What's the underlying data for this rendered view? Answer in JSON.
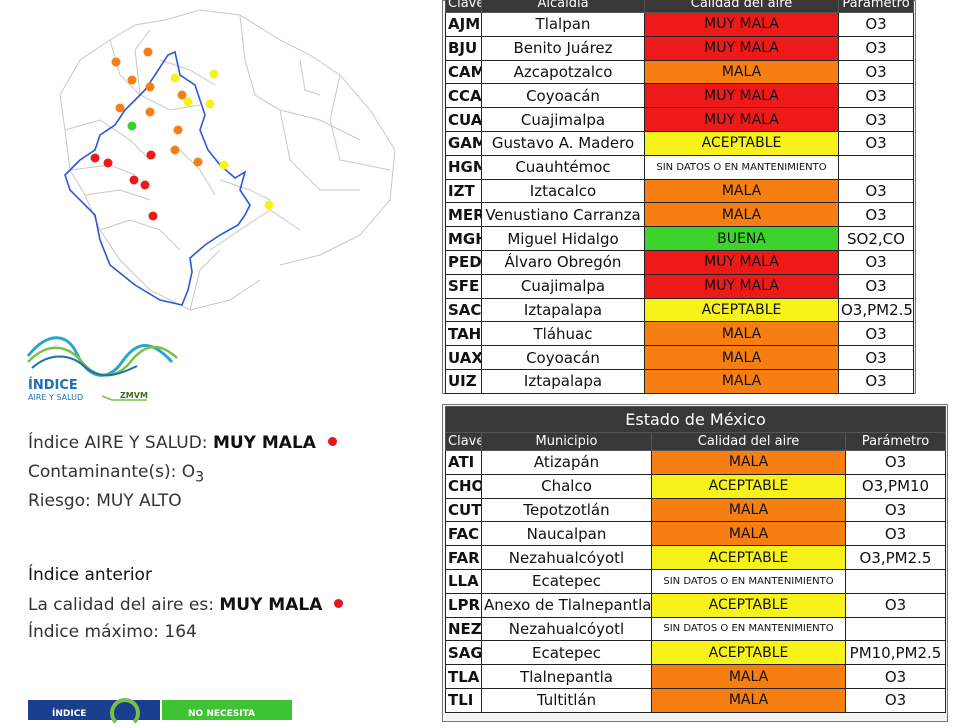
{
  "colors": {
    "muy_mala": "#ee1a1a",
    "mala": "#f77f12",
    "aceptable": "#f7f21a",
    "buena": "#3ed32c",
    "sin_datos": "#ffffff",
    "header": "#383838",
    "marker_red": "#e8141a"
  },
  "cdmx_table": {
    "headers": [
      "Clave",
      "Alcaldía",
      "Calidad del aire",
      "Parámetro"
    ],
    "rows": [
      {
        "clave": "AJM",
        "alcaldia": "Tlalpan",
        "calidad": "MUY MALA",
        "level": "muy_mala",
        "parametro": "O3"
      },
      {
        "clave": "BJU",
        "alcaldia": "Benito Juárez",
        "calidad": "MUY MALA",
        "level": "muy_mala",
        "parametro": "O3"
      },
      {
        "clave": "CAM",
        "alcaldia": "Azcapotzalco",
        "calidad": "MALA",
        "level": "mala",
        "parametro": "O3"
      },
      {
        "clave": "CCA",
        "alcaldia": "Coyoacán",
        "calidad": "MUY MALA",
        "level": "muy_mala",
        "parametro": "O3"
      },
      {
        "clave": "CUA",
        "alcaldia": "Cuajimalpa",
        "calidad": "MUY MALA",
        "level": "muy_mala",
        "parametro": "O3"
      },
      {
        "clave": "GAM",
        "alcaldia": "Gustavo A. Madero",
        "calidad": "ACEPTABLE",
        "level": "aceptable",
        "parametro": "O3"
      },
      {
        "clave": "HGM",
        "alcaldia": "Cuauhtémoc",
        "calidad": "SIN DATOS O EN MANTENIMIENTO",
        "level": "sin_datos",
        "parametro": ""
      },
      {
        "clave": "IZT",
        "alcaldia": "Iztacalco",
        "calidad": "MALA",
        "level": "mala",
        "parametro": "O3"
      },
      {
        "clave": "MER",
        "alcaldia": "Venustiano Carranza",
        "calidad": "MALA",
        "level": "mala",
        "parametro": "O3"
      },
      {
        "clave": "MGH",
        "alcaldia": "Miguel Hidalgo",
        "calidad": "BUENA",
        "level": "buena",
        "parametro": "SO2,CO"
      },
      {
        "clave": "PED",
        "alcaldia": "Álvaro Obregón",
        "calidad": "MUY MALA",
        "level": "muy_mala",
        "parametro": "O3"
      },
      {
        "clave": "SFE",
        "alcaldia": "Cuajimalpa",
        "calidad": "MUY MALA",
        "level": "muy_mala",
        "parametro": "O3"
      },
      {
        "clave": "SAC",
        "alcaldia": "Iztapalapa",
        "calidad": "ACEPTABLE",
        "level": "aceptable",
        "parametro": "O3,PM2.5"
      },
      {
        "clave": "TAH",
        "alcaldia": "Tláhuac",
        "calidad": "MALA",
        "level": "mala",
        "parametro": "O3"
      },
      {
        "clave": "UAX",
        "alcaldia": "Coyoacán",
        "calidad": "MALA",
        "level": "mala",
        "parametro": "O3"
      },
      {
        "clave": "UIZ",
        "alcaldia": "Iztapalapa",
        "calidad": "MALA",
        "level": "mala",
        "parametro": "O3"
      }
    ]
  },
  "edomex_table": {
    "title": "Estado de México",
    "headers": [
      "Clave",
      "Municipio",
      "Calidad del aire",
      "Parámetro"
    ],
    "rows": [
      {
        "clave": "ATI",
        "alcaldia": "Atizapán",
        "calidad": "MALA",
        "level": "mala",
        "parametro": "O3"
      },
      {
        "clave": "CHO",
        "alcaldia": "Chalco",
        "calidad": "ACEPTABLE",
        "level": "aceptable",
        "parametro": "O3,PM10"
      },
      {
        "clave": "CUT",
        "alcaldia": "Tepotzotlán",
        "calidad": "MALA",
        "level": "mala",
        "parametro": "O3"
      },
      {
        "clave": "FAC",
        "alcaldia": "Naucalpan",
        "calidad": "MALA",
        "level": "mala",
        "parametro": "O3"
      },
      {
        "clave": "FAR",
        "alcaldia": "Nezahualcóyotl",
        "calidad": "ACEPTABLE",
        "level": "aceptable",
        "parametro": "O3,PM2.5"
      },
      {
        "clave": "LLA",
        "alcaldia": "Ecatepec",
        "calidad": "SIN DATOS O EN MANTENIMIENTO",
        "level": "sin_datos",
        "parametro": ""
      },
      {
        "clave": "LPR",
        "alcaldia": "Anexo de Tlalnepantla",
        "calidad": "ACEPTABLE",
        "level": "aceptable",
        "parametro": "O3"
      },
      {
        "clave": "NEZ",
        "alcaldia": "Nezahualcóyotl",
        "calidad": "SIN DATOS O EN MANTENIMIENTO",
        "level": "sin_datos",
        "parametro": ""
      },
      {
        "clave": "SAG",
        "alcaldia": "Ecatepec",
        "calidad": "ACEPTABLE",
        "level": "aceptable",
        "parametro": "PM10,PM2.5"
      },
      {
        "clave": "TLA",
        "alcaldia": "Tlalnepantla",
        "calidad": "MALA",
        "level": "mala",
        "parametro": "O3"
      },
      {
        "clave": "TLI",
        "alcaldia": "Tultitlán",
        "calidad": "MALA",
        "level": "mala",
        "parametro": "O3"
      }
    ]
  },
  "logo": {
    "line1": "ÍNDICE",
    "line2": "AIRE Y SALUD",
    "tag": "ZMVM"
  },
  "summary": {
    "index_label": "Índice AIRE Y SALUD:",
    "index_value": "MUY MALA",
    "pollutant_label": "Contaminante(s):",
    "pollutant_main": "O",
    "pollutant_sub": "3",
    "risk_label": "Riesgo:",
    "risk_value": "MUY ALTO"
  },
  "previous": {
    "title": "Índice anterior",
    "quality_label": "La calidad del aire es:",
    "quality_value": "MUY MALA",
    "max_label": "Índice máximo:",
    "max_value": "164"
  },
  "bottom": {
    "left_label": "ÍNDICE",
    "right_label": "NO NECESITA"
  },
  "map": {
    "stations": [
      {
        "level": "mala"
      },
      {
        "level": "mala"
      },
      {
        "level": "mala"
      },
      {
        "level": "mala"
      },
      {
        "level": "mala"
      },
      {
        "level": "mala"
      },
      {
        "level": "mala"
      },
      {
        "level": "mala"
      },
      {
        "level": "mala"
      },
      {
        "level": "mala"
      },
      {
        "level": "aceptable"
      },
      {
        "level": "aceptable"
      },
      {
        "level": "aceptable"
      },
      {
        "level": "aceptable"
      },
      {
        "level": "aceptable"
      },
      {
        "level": "buena"
      },
      {
        "level": "muy_mala"
      },
      {
        "level": "muy_mala"
      },
      {
        "level": "muy_mala"
      },
      {
        "level": "muy_mala"
      },
      {
        "level": "muy_mala"
      },
      {
        "level": "muy_mala"
      }
    ]
  }
}
